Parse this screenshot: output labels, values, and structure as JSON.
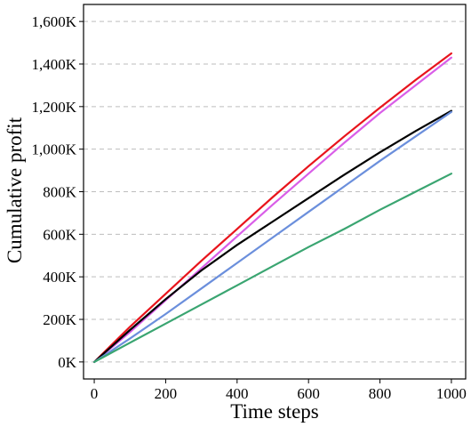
{
  "chart_data": {
    "type": "line",
    "title": "",
    "xlabel": "Time steps",
    "ylabel": "Cumulative profit",
    "xlim": [
      -30,
      1040
    ],
    "ylim": [
      -80000,
      1680000
    ],
    "x_ticks": [
      0,
      200,
      400,
      600,
      800,
      1000
    ],
    "x_tick_labels": [
      "0",
      "200",
      "400",
      "600",
      "800",
      "1000"
    ],
    "y_ticks": [
      0,
      200000,
      400000,
      600000,
      800000,
      1000000,
      1200000,
      1400000,
      1600000
    ],
    "y_tick_labels": [
      "0K",
      "200K",
      "400K",
      "600K",
      "800K",
      "1,000K",
      "1,200K",
      "1,400K",
      "1,600K"
    ],
    "grid": "horizontal dashed",
    "legend": "none",
    "series": [
      {
        "color": "#e8141c",
        "x": [
          0,
          100,
          200,
          300,
          400,
          500,
          600,
          700,
          800,
          900,
          1000
        ],
        "y": [
          0,
          165000,
          320000,
          475000,
          625000,
          775000,
          920000,
          1060000,
          1195000,
          1325000,
          1450000
        ]
      },
      {
        "color": "#d95ee8",
        "x": [
          0,
          100,
          200,
          300,
          400,
          500,
          600,
          700,
          800,
          900,
          1000
        ],
        "y": [
          0,
          140000,
          290000,
          440000,
          590000,
          740000,
          885000,
          1030000,
          1170000,
          1300000,
          1430000
        ]
      },
      {
        "color": "#000000",
        "x": [
          0,
          100,
          200,
          300,
          400,
          500,
          600,
          700,
          800,
          900,
          1000
        ],
        "y": [
          0,
          150000,
          295000,
          430000,
          550000,
          660000,
          770000,
          880000,
          985000,
          1085000,
          1180000
        ]
      },
      {
        "color": "#6b8fdc",
        "x": [
          0,
          100,
          200,
          300,
          400,
          500,
          600,
          700,
          800,
          900,
          1000
        ],
        "y": [
          0,
          110000,
          225000,
          345000,
          465000,
          585000,
          705000,
          825000,
          945000,
          1060000,
          1175000
        ]
      },
      {
        "color": "#3aa571",
        "x": [
          0,
          100,
          200,
          300,
          400,
          500,
          600,
          700,
          800,
          900,
          1000
        ],
        "y": [
          0,
          90000,
          180000,
          270000,
          360000,
          450000,
          540000,
          625000,
          715000,
          800000,
          885000
        ]
      }
    ]
  }
}
